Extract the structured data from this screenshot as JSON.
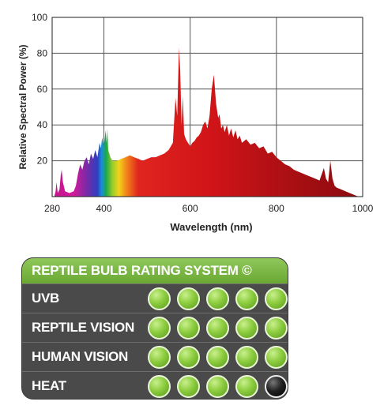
{
  "chart_data": {
    "type": "area",
    "title": "",
    "xlabel": "Wavelength (nm)",
    "ylabel": "Relative Spectral Power (%)",
    "xlim": [
      280,
      1000
    ],
    "ylim": [
      0,
      100
    ],
    "xticks": [
      280,
      400,
      600,
      800,
      1000
    ],
    "yticks": [
      20,
      40,
      60,
      80,
      100
    ],
    "grid": true,
    "fill": "visible-spectrum gradient (violet to red)",
    "series": [
      {
        "x": [
          280,
          285,
          288,
          290,
          293,
          297,
          300,
          302,
          305,
          310,
          320,
          330,
          335,
          340,
          345,
          350,
          355,
          360,
          365,
          370,
          375,
          380,
          385,
          390,
          393,
          396,
          400,
          404,
          406,
          408,
          410,
          415,
          420,
          430,
          440,
          450,
          460,
          470,
          480,
          490,
          500,
          510,
          520,
          530,
          540,
          550,
          560,
          566,
          570,
          574,
          577,
          580,
          583,
          586,
          590,
          595,
          600,
          605,
          610,
          615,
          620,
          625,
          630,
          635,
          640,
          645,
          650,
          655,
          660,
          665,
          668,
          672,
          676,
          680,
          685,
          690,
          695,
          700,
          705,
          710,
          715,
          720,
          730,
          740,
          750,
          760,
          770,
          780,
          790,
          800,
          810,
          820,
          830,
          840,
          850,
          860,
          870,
          880,
          890,
          900,
          910,
          915,
          920,
          925,
          930,
          935,
          940,
          950,
          960,
          970,
          980,
          990,
          1000
        ],
        "y": [
          0,
          0,
          3,
          8,
          2,
          4,
          12,
          15,
          8,
          3,
          2,
          3,
          6,
          13,
          18,
          15,
          20,
          22,
          18,
          24,
          21,
          26,
          22,
          30,
          27,
          33,
          28,
          37,
          30,
          38,
          26,
          22,
          20,
          20,
          21,
          22,
          23,
          22,
          21,
          20,
          21,
          22,
          22,
          23,
          24,
          26,
          30,
          55,
          45,
          83,
          70,
          40,
          56,
          35,
          32,
          30,
          28,
          30,
          31,
          33,
          34,
          36,
          40,
          42,
          38,
          45,
          60,
          68,
          52,
          44,
          46,
          38,
          40,
          36,
          40,
          34,
          38,
          33,
          37,
          32,
          34,
          30,
          32,
          29,
          30,
          27,
          28,
          24,
          25,
          22,
          20,
          18,
          17,
          15,
          14,
          13,
          12,
          11,
          10,
          9,
          16,
          10,
          8,
          20,
          10,
          6,
          5,
          4,
          3,
          2,
          1,
          0,
          0
        ]
      }
    ]
  },
  "rating": {
    "title": "REPTILE BULB RATING SYSTEM ©",
    "rows": [
      {
        "label": "UVB",
        "level": 5,
        "max": 5
      },
      {
        "label": "REPTILE VISION",
        "level": 5,
        "max": 5
      },
      {
        "label": "HUMAN VISION",
        "level": 5,
        "max": 5
      },
      {
        "label": "HEAT",
        "level": 4,
        "max": 5
      }
    ],
    "colors": {
      "on": "#8ccc3e",
      "off": "#111111",
      "header": "#7ab947",
      "panel": "#4a4a4a"
    }
  }
}
